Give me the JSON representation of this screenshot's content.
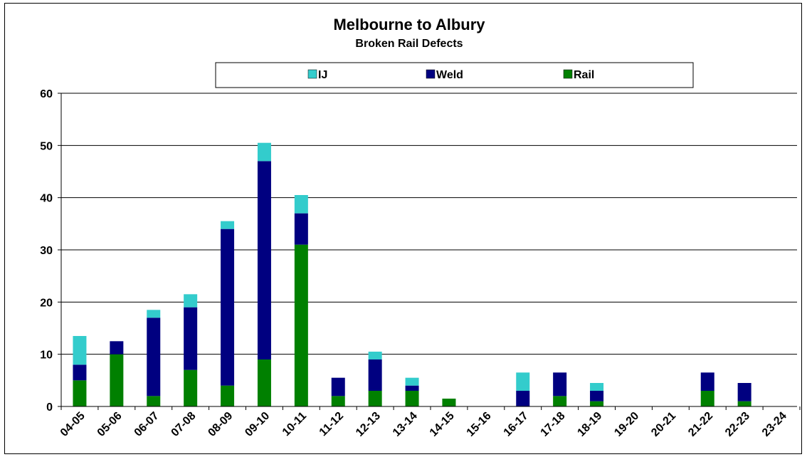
{
  "chart_data": {
    "type": "bar",
    "stacked": true,
    "title": "Melbourne to Albury",
    "subtitle": "Broken Rail Defects",
    "xlabel": "",
    "ylabel": "",
    "ylim": [
      0,
      60
    ],
    "yticks": [
      0,
      10,
      20,
      30,
      40,
      50,
      60
    ],
    "grid": true,
    "legend_position": "top-center",
    "categories": [
      "04-05",
      "05-06",
      "06-07",
      "07-08",
      "08-09",
      "09-10",
      "10-11",
      "11-12",
      "12-13",
      "13-14",
      "14-15",
      "15-16",
      "16-17",
      "17-18",
      "18-19",
      "19-20",
      "20-21",
      "21-22",
      "22-23",
      "23-24"
    ],
    "series": [
      {
        "name": "Rail",
        "color": "#008000",
        "values": [
          5,
          10,
          2,
          7,
          4,
          9,
          31,
          2,
          3,
          3,
          1.5,
          0,
          0,
          2,
          1,
          0,
          0,
          3,
          1,
          0
        ]
      },
      {
        "name": "Weld",
        "color": "#000080",
        "values": [
          3,
          2.5,
          15,
          12,
          30,
          38,
          6,
          3.5,
          6,
          1,
          0,
          0,
          3,
          4.5,
          2,
          0,
          0,
          3.5,
          3.5,
          0
        ]
      },
      {
        "name": "IJ",
        "color": "#33CCCC",
        "values": [
          5.5,
          0,
          1.5,
          2.5,
          1.5,
          3.5,
          3.5,
          0,
          1.5,
          1.5,
          0,
          0,
          3.5,
          0,
          1.5,
          0,
          0,
          0,
          0,
          0
        ]
      }
    ],
    "legend_order": [
      "IJ",
      "Weld",
      "Rail"
    ]
  }
}
